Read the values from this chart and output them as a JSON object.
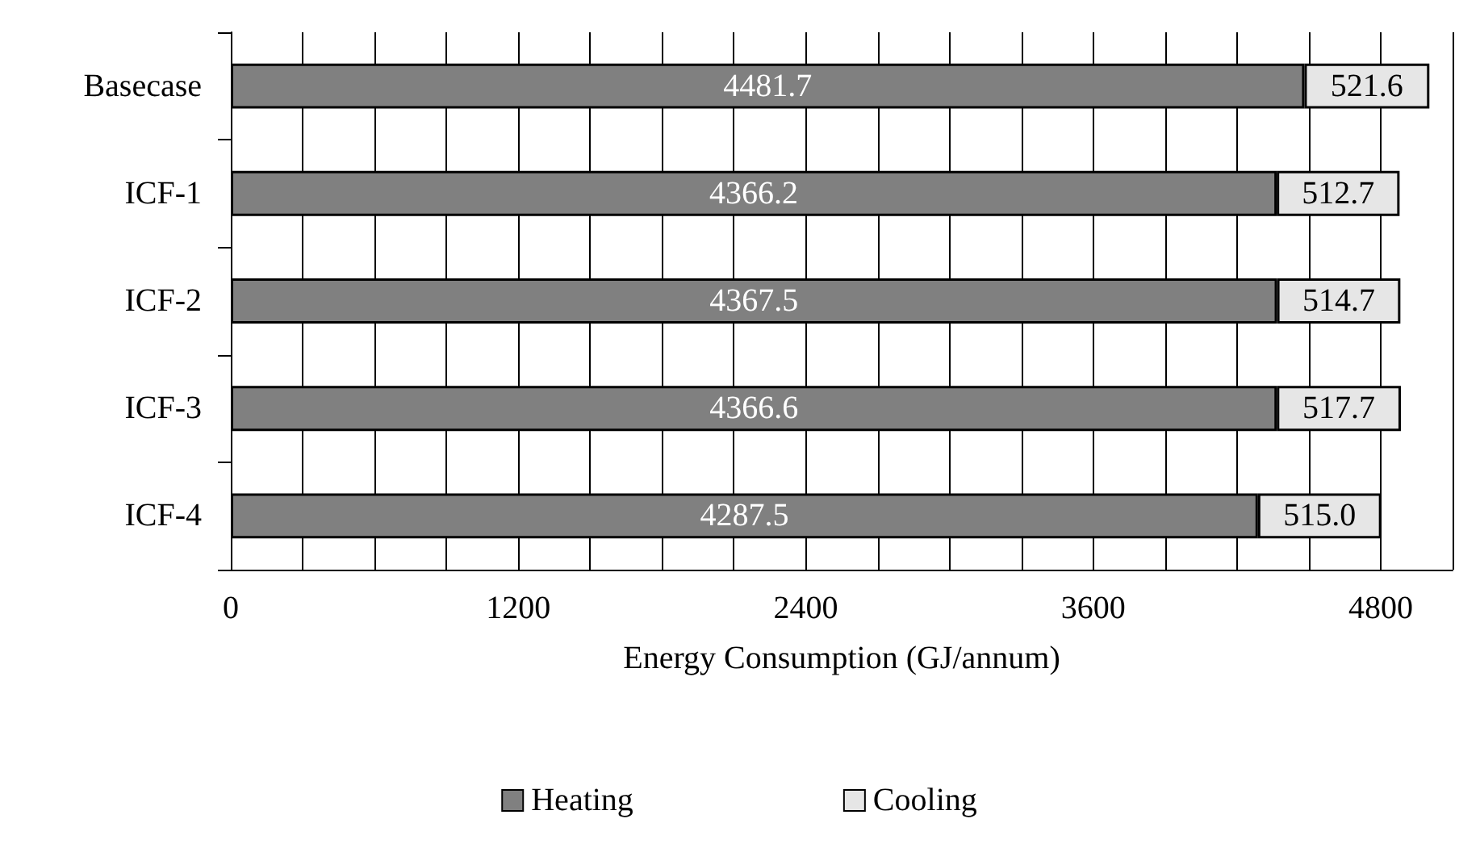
{
  "chart_data": {
    "type": "bar",
    "orientation": "horizontal",
    "stacked": true,
    "xlabel": "Energy Consumption (GJ/annum)",
    "categories": [
      "Basecase",
      "ICF-1",
      "ICF-2",
      "ICF-3",
      "ICF-4"
    ],
    "series": [
      {
        "name": "Heating",
        "color": "#808080",
        "values": [
          4481.7,
          4366.2,
          4367.5,
          4366.6,
          4287.5
        ],
        "value_labels": [
          "4481.7",
          "4366.2",
          "4367.5",
          "4366.6",
          "4287.5"
        ]
      },
      {
        "name": "Cooling",
        "color": "#e6e6e6",
        "values": [
          521.6,
          512.7,
          514.7,
          517.7,
          515.0
        ],
        "value_labels": [
          "521.6",
          "512.7",
          "514.7",
          "517.7",
          "515.0"
        ]
      }
    ],
    "xlim": [
      0,
      5100
    ],
    "xticks": [
      0,
      {
        "value": 300,
        "label": null
      },
      {
        "value": 600,
        "label": null
      },
      {
        "value": 900,
        "label": null
      },
      1200,
      {
        "value": 1500,
        "label": null
      },
      {
        "value": 1800,
        "label": null
      },
      {
        "value": 2100,
        "label": null
      },
      2400,
      {
        "value": 2700,
        "label": null
      },
      {
        "value": 3000,
        "label": null
      },
      {
        "value": 3300,
        "label": null
      },
      3600,
      {
        "value": 3900,
        "label": null
      },
      {
        "value": 4200,
        "label": null
      },
      {
        "value": 4500,
        "label": null
      },
      4800,
      {
        "value": 5100,
        "label": null
      }
    ],
    "grid": "x",
    "legend": "bottom"
  }
}
